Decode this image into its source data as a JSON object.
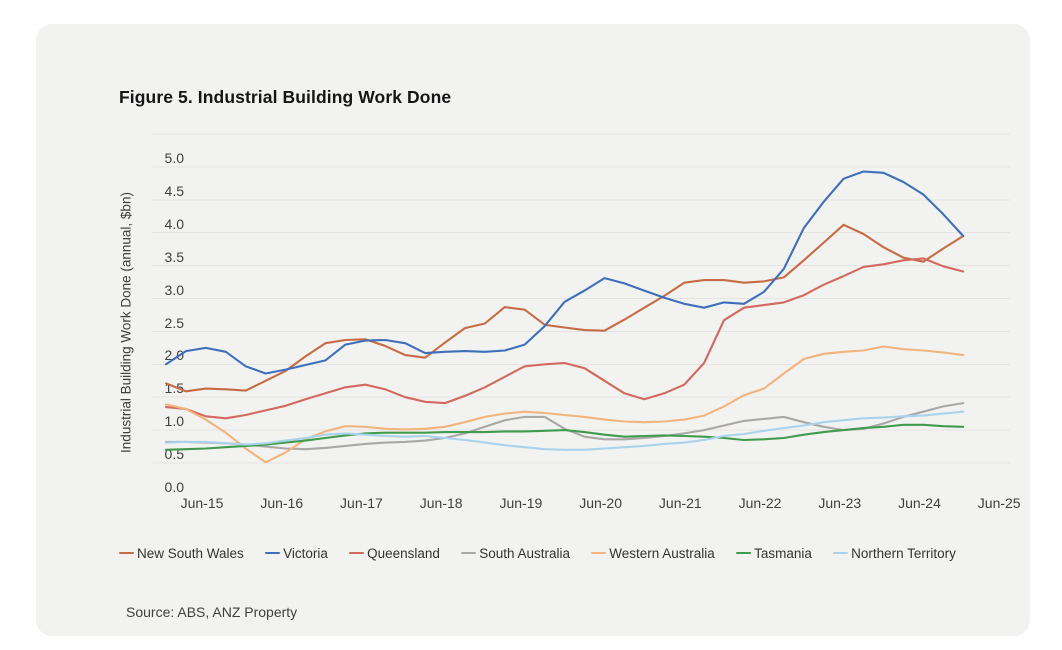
{
  "figure": {
    "title": "Figure 5. Industrial Building Work Done",
    "source": "Source: ABS, ANZ Property"
  },
  "colors": {
    "page_background": "#ffffff",
    "card_background": "#f2f2f1",
    "gridline": "#e6e4e2",
    "title_text": "#161616",
    "axis_text": "#3f3f3f",
    "legend_text": "#333333",
    "source_text": "#404040"
  },
  "chart_data": {
    "type": "line",
    "title": "Figure 5. Industrial Building Work Done",
    "xlabel": "",
    "ylabel": "Industrial Building Work Done (annual, $bn)",
    "ylim": [
      0.0,
      5.0
    ],
    "ytick_step": 0.5,
    "grid": "horizontal",
    "legend_position": "bottom",
    "x_tick_labels": [
      "Jun-15",
      "Jun-16",
      "Jun-17",
      "Jun-18",
      "Jun-19",
      "Jun-20",
      "Jun-21",
      "Jun-22",
      "Jun-23",
      "Jun-24",
      "Jun-25"
    ],
    "x": [
      "Jun-15",
      "Sep-15",
      "Dec-15",
      "Mar-16",
      "Jun-16",
      "Sep-16",
      "Dec-16",
      "Mar-17",
      "Jun-17",
      "Sep-17",
      "Dec-17",
      "Mar-18",
      "Jun-18",
      "Sep-18",
      "Dec-18",
      "Mar-19",
      "Jun-19",
      "Sep-19",
      "Dec-19",
      "Mar-20",
      "Jun-20",
      "Sep-20",
      "Dec-20",
      "Mar-21",
      "Jun-21",
      "Sep-21",
      "Dec-21",
      "Mar-22",
      "Jun-22",
      "Sep-22",
      "Dec-22",
      "Mar-23",
      "Jun-23",
      "Sep-23",
      "Dec-23",
      "Mar-24",
      "Jun-24",
      "Sep-24",
      "Dec-24",
      "Mar-25",
      "Jun-25"
    ],
    "series": [
      {
        "name": "New South Wales",
        "color": "#c76b45",
        "values": [
          1.21,
          1.09,
          1.13,
          1.12,
          1.1,
          1.25,
          1.4,
          1.62,
          1.82,
          1.87,
          1.88,
          1.78,
          1.64,
          1.6,
          1.83,
          2.05,
          2.12,
          2.37,
          2.33,
          2.1,
          2.06,
          2.02,
          2.01,
          2.18,
          2.36,
          2.54,
          2.74,
          2.78,
          2.78,
          2.74,
          2.76,
          2.82,
          3.08,
          3.35,
          3.62,
          3.48,
          3.28,
          3.12,
          3.06,
          3.26,
          3.45
        ]
      },
      {
        "name": "Victoria",
        "color": "#3e6fba",
        "values": [
          1.5,
          1.7,
          1.75,
          1.69,
          1.47,
          1.36,
          1.42,
          1.49,
          1.56,
          1.8,
          1.86,
          1.87,
          1.82,
          1.67,
          1.69,
          1.7,
          1.69,
          1.71,
          1.8,
          2.08,
          2.45,
          2.62,
          2.81,
          2.73,
          2.62,
          2.51,
          2.42,
          2.36,
          2.44,
          2.42,
          2.6,
          2.95,
          3.57,
          3.97,
          4.32,
          4.43,
          4.41,
          4.27,
          4.08,
          3.78,
          3.45
        ]
      },
      {
        "name": "Queensland",
        "color": "#d4695e",
        "values": [
          0.85,
          0.82,
          0.71,
          0.68,
          0.73,
          0.8,
          0.87,
          0.97,
          1.06,
          1.15,
          1.19,
          1.12,
          1.0,
          0.93,
          0.91,
          1.02,
          1.15,
          1.31,
          1.47,
          1.5,
          1.52,
          1.44,
          1.25,
          1.06,
          0.97,
          1.06,
          1.19,
          1.52,
          2.17,
          2.36,
          2.4,
          2.44,
          2.55,
          2.71,
          2.84,
          2.98,
          3.02,
          3.08,
          3.11,
          2.99,
          2.91
        ]
      },
      {
        "name": "South Australia",
        "color": "#a9a8a7",
        "values": [
          0.32,
          0.32,
          0.31,
          0.3,
          0.28,
          0.25,
          0.22,
          0.21,
          0.23,
          0.26,
          0.29,
          0.31,
          0.32,
          0.34,
          0.38,
          0.45,
          0.55,
          0.65,
          0.7,
          0.7,
          0.52,
          0.4,
          0.36,
          0.36,
          0.38,
          0.41,
          0.45,
          0.5,
          0.57,
          0.64,
          0.67,
          0.7,
          0.62,
          0.55,
          0.5,
          0.52,
          0.6,
          0.7,
          0.78,
          0.86,
          0.91
        ]
      },
      {
        "name": "Western Australia",
        "color": "#f1b47d",
        "values": [
          0.89,
          0.82,
          0.66,
          0.46,
          0.22,
          0.01,
          0.16,
          0.36,
          0.48,
          0.56,
          0.55,
          0.52,
          0.51,
          0.52,
          0.55,
          0.62,
          0.7,
          0.75,
          0.78,
          0.76,
          0.73,
          0.7,
          0.66,
          0.63,
          0.62,
          0.63,
          0.66,
          0.72,
          0.86,
          1.03,
          1.13,
          1.36,
          1.58,
          1.66,
          1.69,
          1.71,
          1.77,
          1.73,
          1.71,
          1.68,
          1.64
        ]
      },
      {
        "name": "Tasmania",
        "color": "#419b4d",
        "values": [
          0.2,
          0.21,
          0.22,
          0.24,
          0.26,
          0.28,
          0.31,
          0.34,
          0.38,
          0.42,
          0.45,
          0.46,
          0.46,
          0.46,
          0.47,
          0.47,
          0.47,
          0.48,
          0.48,
          0.49,
          0.5,
          0.47,
          0.43,
          0.4,
          0.41,
          0.42,
          0.41,
          0.4,
          0.38,
          0.35,
          0.36,
          0.38,
          0.43,
          0.47,
          0.5,
          0.53,
          0.55,
          0.58,
          0.58,
          0.56,
          0.55
        ]
      },
      {
        "name": "Northern Territory",
        "color": "#a9d3ec",
        "values": [
          0.31,
          0.32,
          0.32,
          0.3,
          0.28,
          0.3,
          0.34,
          0.38,
          0.43,
          0.45,
          0.43,
          0.41,
          0.4,
          0.41,
          0.38,
          0.35,
          0.31,
          0.27,
          0.24,
          0.21,
          0.2,
          0.2,
          0.22,
          0.24,
          0.26,
          0.29,
          0.31,
          0.35,
          0.41,
          0.44,
          0.49,
          0.53,
          0.57,
          0.62,
          0.65,
          0.68,
          0.69,
          0.71,
          0.72,
          0.75,
          0.78
        ]
      }
    ]
  }
}
